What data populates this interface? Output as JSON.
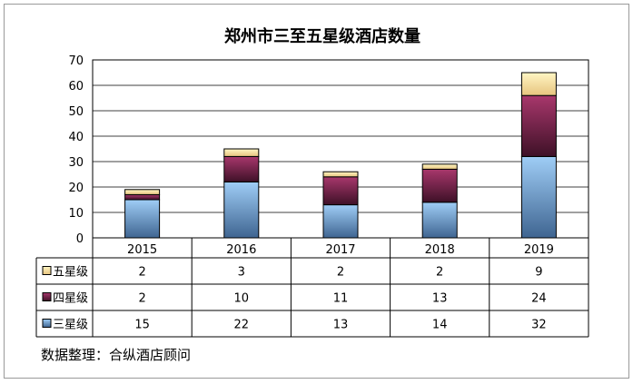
{
  "chart_data": {
    "type": "bar",
    "stacked": true,
    "title": "郑州市三至五星级酒店数量",
    "categories": [
      "2015",
      "2016",
      "2017",
      "2018",
      "2019"
    ],
    "series": [
      {
        "name": "三星级",
        "values": [
          15,
          22,
          13,
          14,
          32
        ],
        "color": "#7aaee6"
      },
      {
        "name": "四星级",
        "values": [
          2,
          10,
          11,
          13,
          24
        ],
        "color": "#8b2e5c"
      },
      {
        "name": "五星级",
        "values": [
          2,
          3,
          2,
          2,
          9
        ],
        "color": "#f6e3a6"
      }
    ],
    "ylim": [
      0,
      70
    ],
    "yticks": [
      "0",
      "10",
      "20",
      "30",
      "40",
      "50",
      "60",
      "70"
    ],
    "grid": true,
    "legend": "data-table"
  },
  "source_note": "数据整理：合纵酒店顾问"
}
